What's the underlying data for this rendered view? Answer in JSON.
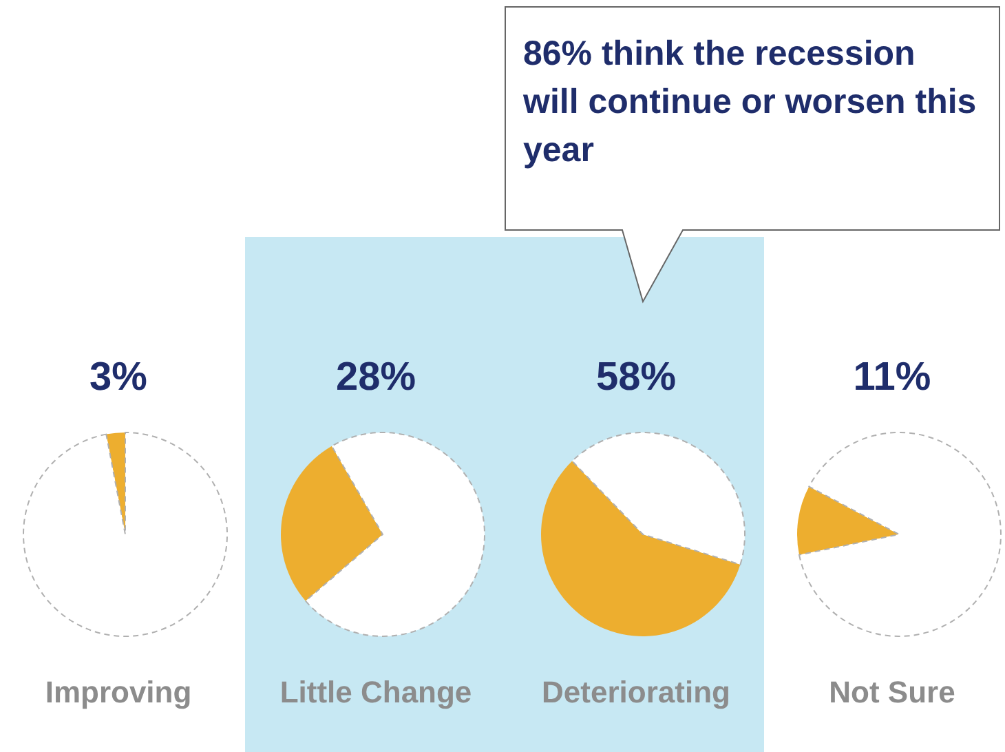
{
  "chart_data": [
    {
      "type": "pie",
      "title": "3%",
      "xlabel": "Improving",
      "categories": [
        null,
        null
      ],
      "values": [
        3,
        97
      ],
      "colors": [
        "#edae2f",
        "#ffffff"
      ]
    },
    {
      "type": "pie",
      "title": "28%",
      "xlabel": "Little Change",
      "categories": [
        null,
        null
      ],
      "values": [
        28,
        72
      ],
      "colors": [
        "#edae2f",
        "#ffffff"
      ]
    },
    {
      "type": "pie",
      "title": "58%",
      "xlabel": "Deteriorating",
      "categories": [
        null,
        null
      ],
      "values": [
        58,
        42
      ],
      "colors": [
        "#edae2f",
        "#ffffff"
      ],
      "annotations": [
        "86% think the recession will continue or worsen this year"
      ]
    },
    {
      "type": "pie",
      "title": "11%",
      "xlabel": "Not Sure",
      "categories": [
        null,
        null
      ],
      "values": [
        11,
        89
      ],
      "colors": [
        "#edae2f",
        "#ffffff"
      ]
    }
  ]
}
